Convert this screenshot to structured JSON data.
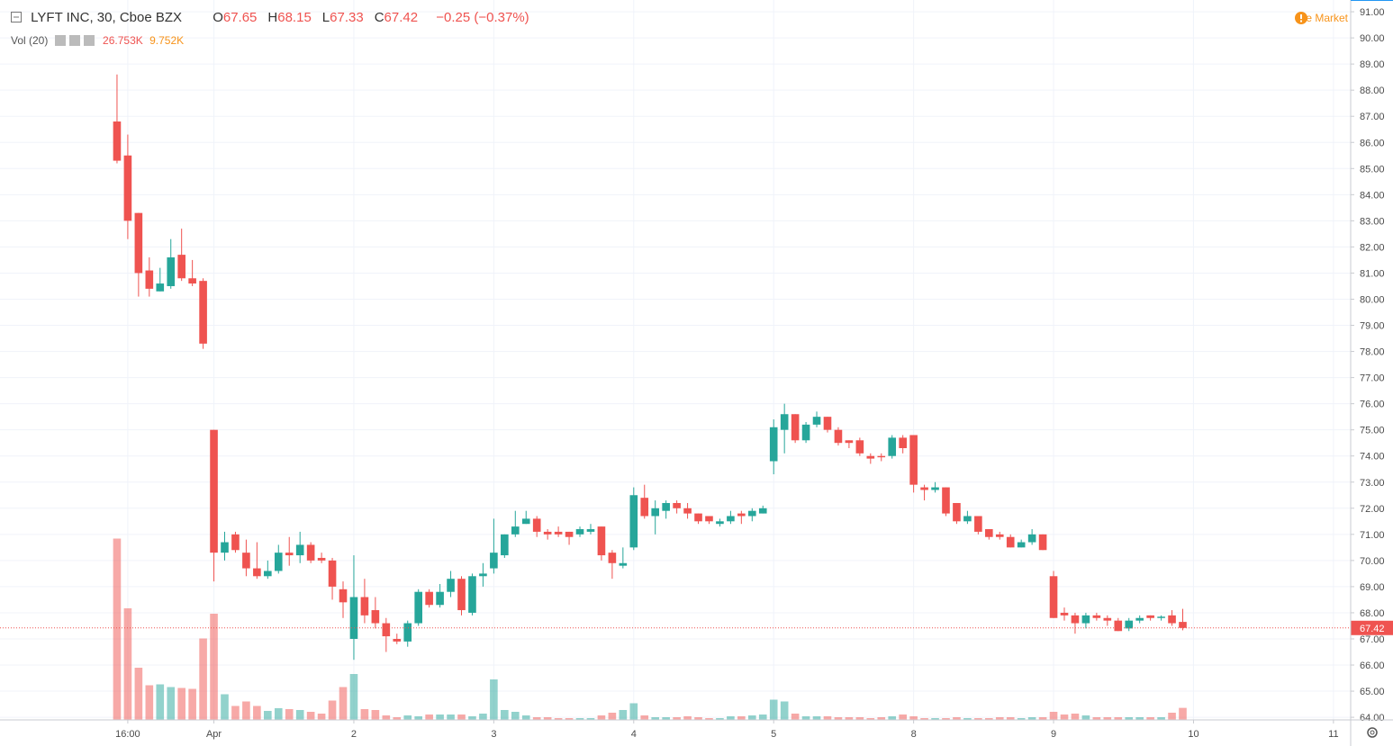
{
  "header": {
    "symbol": "LYFT INC, 30, Cboe BZX",
    "ohlc": [
      {
        "key": "O",
        "value": "67.65"
      },
      {
        "key": "H",
        "value": "68.15"
      },
      {
        "key": "L",
        "value": "67.33"
      },
      {
        "key": "C",
        "value": "67.42"
      }
    ],
    "change": "−0.25 (−0.37%)",
    "volume_title": "Vol (20)",
    "volume": "26.753K",
    "volume_ma": "9.752K",
    "session": "Pre Market"
  },
  "chart_data": {
    "type": "candlestick",
    "up_color": "#26a69a",
    "down_color": "#ef5350",
    "grid": true,
    "xlim": [
      -10.87,
      114.6
    ],
    "xticks": [
      {
        "value": 1,
        "label": "16:00"
      },
      {
        "value": 9,
        "label": "Apr"
      },
      {
        "value": 22,
        "label": "2"
      },
      {
        "value": 35,
        "label": "3"
      },
      {
        "value": 48,
        "label": "4"
      },
      {
        "value": 61,
        "label": "5"
      },
      {
        "value": 74,
        "label": "8"
      },
      {
        "value": 87,
        "label": "9"
      },
      {
        "value": 100,
        "label": "10"
      },
      {
        "value": 113,
        "label": "11"
      }
    ],
    "ylim": [
      63.9,
      91.45
    ],
    "yticks": [
      {
        "value": 64,
        "label": "64.00"
      },
      {
        "value": 65,
        "label": "65.00"
      },
      {
        "value": 66,
        "label": "66.00"
      },
      {
        "value": 67,
        "label": "67.00"
      },
      {
        "value": 68,
        "label": "68.00"
      },
      {
        "value": 69,
        "label": "69.00"
      },
      {
        "value": 70,
        "label": "70.00"
      },
      {
        "value": 71,
        "label": "71.00"
      },
      {
        "value": 72,
        "label": "72.00"
      },
      {
        "value": 73,
        "label": "73.00"
      },
      {
        "value": 74,
        "label": "74.00"
      },
      {
        "value": 75,
        "label": "75.00"
      },
      {
        "value": 76,
        "label": "76.00"
      },
      {
        "value": 77,
        "label": "77.00"
      },
      {
        "value": 78,
        "label": "78.00"
      },
      {
        "value": 79,
        "label": "79.00"
      },
      {
        "value": 80,
        "label": "80.00"
      },
      {
        "value": 81,
        "label": "81.00"
      },
      {
        "value": 82,
        "label": "82.00"
      },
      {
        "value": 83,
        "label": "83.00"
      },
      {
        "value": 84,
        "label": "84.00"
      },
      {
        "value": 85,
        "label": "85.00"
      },
      {
        "value": 86,
        "label": "86.00"
      },
      {
        "value": 87,
        "label": "87.00"
      },
      {
        "value": 88,
        "label": "88.00"
      },
      {
        "value": 89,
        "label": "89.00"
      },
      {
        "value": 90,
        "label": "90.00"
      },
      {
        "value": 91,
        "label": "91.00"
      }
    ],
    "last_price": 67.42,
    "volume_lim": [
      0,
      1600000
    ],
    "open": [
      86.8,
      85.5,
      83.3,
      81.1,
      80.3,
      80.5,
      81.7,
      80.8,
      80.7,
      75.0,
      70.3,
      71.0,
      70.3,
      69.7,
      69.4,
      69.6,
      70.3,
      70.2,
      70.6,
      70.1,
      70.0,
      68.9,
      67.0,
      68.6,
      68.1,
      67.6,
      67.0,
      66.9,
      67.6,
      68.8,
      68.3,
      68.8,
      69.3,
      68.0,
      69.4,
      69.7,
      70.2,
      71.0,
      71.4,
      71.6,
      71.1,
      71.1,
      71.1,
      71.0,
      71.1,
      71.3,
      70.3,
      69.8,
      70.5,
      72.4,
      71.7,
      71.9,
      72.2,
      72.0,
      71.8,
      71.7,
      71.4,
      71.5,
      71.8,
      71.7,
      71.8,
      73.8,
      75.0,
      75.6,
      74.6,
      75.2,
      75.5,
      75.0,
      74.6,
      74.6,
      74.0,
      74.0,
      74.0,
      74.7,
      74.8,
      72.8,
      72.7,
      72.8,
      72.2,
      71.5,
      71.7,
      71.2,
      71.0,
      70.9,
      70.5,
      70.7,
      71.0,
      69.4,
      68.0,
      67.9,
      67.6,
      67.9,
      67.8,
      67.7,
      67.4,
      67.7,
      67.9,
      67.8,
      67.9,
      67.65
    ],
    "high": [
      88.6,
      86.3,
      83.3,
      81.6,
      81.2,
      82.3,
      82.7,
      81.5,
      80.8,
      75.0,
      71.1,
      71.1,
      70.8,
      70.7,
      70.0,
      70.6,
      70.9,
      71.1,
      70.7,
      70.3,
      70.1,
      69.2,
      70.2,
      69.3,
      68.6,
      67.8,
      67.2,
      67.7,
      68.9,
      68.9,
      69.1,
      69.6,
      69.4,
      69.5,
      69.9,
      71.6,
      71.0,
      71.9,
      71.9,
      71.7,
      71.2,
      71.3,
      71.1,
      71.3,
      71.4,
      71.3,
      70.4,
      70.5,
      72.8,
      72.9,
      72.3,
      72.3,
      72.3,
      72.2,
      71.8,
      71.7,
      71.6,
      71.9,
      71.9,
      72.0,
      72.1,
      75.4,
      76.0,
      75.6,
      75.3,
      75.7,
      75.5,
      75.1,
      74.6,
      74.7,
      74.1,
      74.1,
      74.8,
      74.8,
      74.8,
      72.9,
      73.0,
      72.8,
      72.2,
      71.9,
      71.7,
      71.2,
      71.1,
      71.0,
      70.8,
      71.2,
      71.0,
      69.6,
      68.2,
      68.0,
      68.0,
      68.0,
      67.9,
      67.8,
      67.8,
      67.9,
      67.9,
      67.9,
      68.1,
      68.15
    ],
    "low": [
      85.2,
      82.3,
      80.1,
      80.1,
      80.3,
      80.4,
      80.7,
      80.5,
      78.1,
      69.2,
      70.0,
      70.3,
      69.4,
      69.3,
      69.3,
      69.5,
      69.8,
      69.9,
      69.9,
      69.9,
      68.5,
      67.8,
      66.2,
      67.6,
      67.4,
      66.5,
      66.8,
      66.7,
      67.5,
      68.2,
      68.2,
      68.6,
      67.9,
      67.9,
      69.0,
      69.5,
      70.1,
      70.9,
      71.4,
      70.9,
      70.8,
      70.9,
      70.6,
      70.9,
      71.0,
      70.0,
      69.3,
      69.7,
      70.4,
      71.6,
      71.0,
      71.6,
      71.8,
      71.6,
      71.4,
      71.4,
      71.3,
      71.4,
      71.4,
      71.5,
      71.8,
      73.3,
      74.1,
      74.5,
      74.5,
      75.1,
      74.9,
      74.4,
      74.3,
      74.0,
      73.7,
      73.8,
      73.9,
      74.1,
      72.6,
      72.3,
      72.6,
      71.7,
      71.4,
      71.4,
      71.0,
      70.8,
      70.8,
      70.5,
      70.5,
      70.6,
      70.4,
      67.8,
      67.7,
      67.2,
      67.4,
      67.7,
      67.5,
      67.3,
      67.3,
      67.6,
      67.7,
      67.7,
      67.5,
      67.33
    ],
    "close": [
      85.3,
      83.0,
      81.0,
      80.4,
      80.6,
      81.6,
      80.8,
      80.6,
      78.3,
      70.3,
      70.7,
      70.4,
      69.7,
      69.4,
      69.6,
      70.3,
      70.2,
      70.6,
      70.0,
      70.0,
      69.0,
      68.4,
      68.6,
      67.9,
      67.6,
      67.1,
      66.9,
      67.6,
      68.8,
      68.3,
      68.8,
      69.3,
      68.1,
      69.4,
      69.5,
      70.3,
      71.0,
      71.3,
      71.6,
      71.1,
      71.0,
      71.0,
      70.9,
      71.2,
      71.2,
      70.2,
      69.9,
      69.9,
      72.5,
      71.7,
      72.0,
      72.2,
      72.0,
      71.8,
      71.5,
      71.5,
      71.5,
      71.7,
      71.7,
      71.9,
      72.0,
      75.1,
      75.6,
      74.6,
      75.2,
      75.5,
      75.0,
      74.5,
      74.5,
      74.1,
      73.9,
      73.95,
      74.7,
      74.3,
      72.9,
      72.7,
      72.8,
      71.8,
      71.5,
      71.7,
      71.1,
      70.9,
      70.9,
      70.5,
      70.7,
      71.0,
      70.4,
      67.8,
      67.9,
      67.6,
      67.9,
      67.8,
      67.7,
      67.3,
      67.7,
      67.8,
      67.8,
      67.85,
      67.6,
      67.42
    ],
    "volume": [
      403000,
      248000,
      116000,
      77000,
      79000,
      73000,
      71000,
      69000,
      181000,
      236000,
      57000,
      31000,
      41000,
      31000,
      20000,
      26000,
      24000,
      22000,
      18000,
      14000,
      43000,
      73000,
      102000,
      24000,
      22000,
      10000,
      6000,
      10000,
      8000,
      12000,
      12000,
      12000,
      12000,
      8000,
      14000,
      90000,
      22000,
      18000,
      10000,
      6000,
      6000,
      4000,
      4000,
      4000,
      4000,
      10000,
      16000,
      22000,
      37000,
      10000,
      6000,
      6000,
      6000,
      8000,
      6000,
      4000,
      4000,
      8000,
      8000,
      10000,
      12000,
      45000,
      41000,
      14000,
      8000,
      8000,
      8000,
      6000,
      6000,
      6000,
      4000,
      6000,
      8000,
      12000,
      8000,
      4000,
      4000,
      4000,
      6000,
      4000,
      4000,
      4000,
      6000,
      6000,
      4000,
      6000,
      6000,
      18000,
      12000,
      14000,
      10000,
      6000,
      6000,
      6000,
      6000,
      6000,
      6000,
      6000,
      16000,
      26753
    ]
  }
}
